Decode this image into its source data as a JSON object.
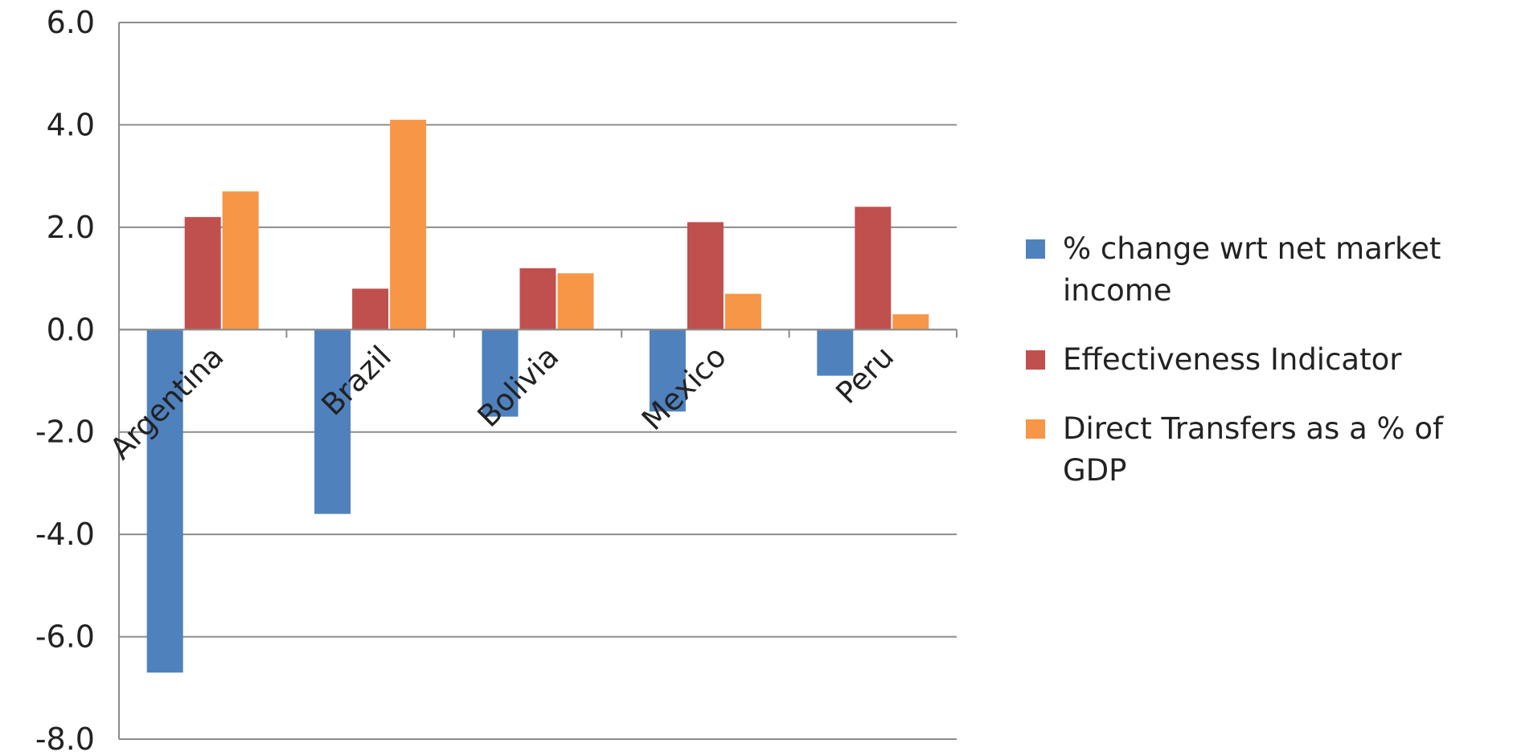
{
  "chart_data": {
    "type": "bar",
    "title": "",
    "xlabel": "",
    "ylabel": "",
    "categories": [
      "Argentina",
      "Brazil",
      "Bolivia",
      "Mexico",
      "Peru"
    ],
    "series": [
      {
        "name": "% change wrt net market income",
        "color": "#4f81bd",
        "values": [
          -6.7,
          -3.6,
          -1.7,
          -1.6,
          -0.9
        ]
      },
      {
        "name": "Effectiveness Indicator",
        "color": "#c0504d",
        "values": [
          2.2,
          0.8,
          1.2,
          2.1,
          2.4
        ]
      },
      {
        "name": "Direct Transfers as a % of GDP",
        "color": "#f79646",
        "values": [
          2.7,
          4.1,
          1.1,
          0.7,
          0.3
        ]
      }
    ],
    "ylim": [
      -8,
      6
    ],
    "yticks": [
      6,
      4,
      2,
      0,
      -2,
      -4,
      -6,
      -8
    ],
    "ytick_labels": [
      "6.0",
      "4.0",
      "2.0",
      "0.0",
      "-2.0",
      "-4.0",
      "-6.0",
      "-8.0"
    ],
    "grid": true,
    "legend_position": "right"
  }
}
